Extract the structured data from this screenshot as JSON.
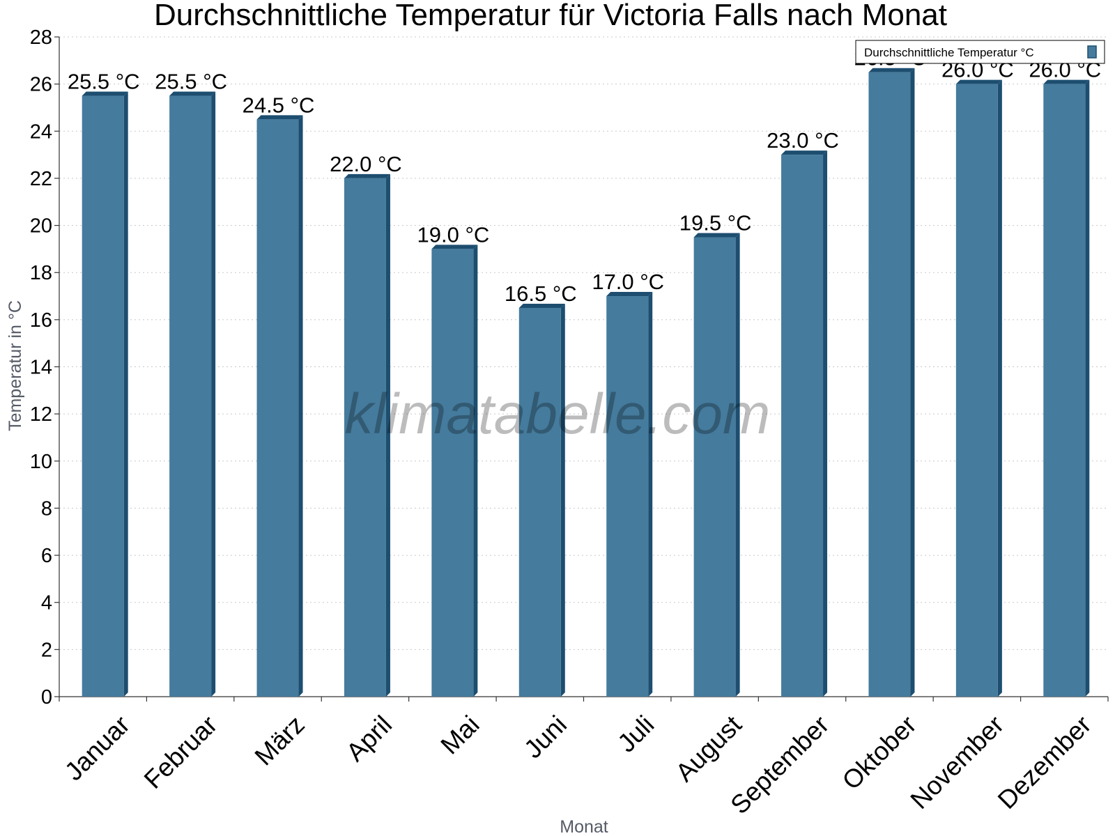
{
  "chart_data": {
    "type": "bar",
    "title": "Durchschnittliche Temperatur für Victoria Falls nach Monat",
    "xlabel": "Monat",
    "ylabel": "Temperatur in °C",
    "categories": [
      "Januar",
      "Februar",
      "März",
      "April",
      "Mai",
      "Juni",
      "Juli",
      "August",
      "September",
      "Oktober",
      "November",
      "Dezember"
    ],
    "series": [
      {
        "name": "Durchschnittliche Temperatur °C",
        "values": [
          25.5,
          25.5,
          24.5,
          22.0,
          19.0,
          16.5,
          17.0,
          19.5,
          23.0,
          26.5,
          26.0,
          26.0
        ],
        "labels": [
          "25.5 °C",
          "25.5 °C",
          "24.5 °C",
          "22.0 °C",
          "19.0 °C",
          "16.5 °C",
          "17.0 °C",
          "19.5 °C",
          "23.0 °C",
          "26.5 °C",
          "26.0 °C",
          "26.0 °C"
        ]
      }
    ],
    "ylim": [
      0,
      28
    ],
    "yticks": [
      0,
      2,
      4,
      6,
      8,
      10,
      12,
      14,
      16,
      18,
      20,
      22,
      24,
      26,
      28
    ],
    "grid": true,
    "legend_position": "top-right",
    "colors": {
      "bar": "#457b9d",
      "bar_dark": "#1d4e70"
    },
    "watermark": "klimatabelle.com"
  }
}
